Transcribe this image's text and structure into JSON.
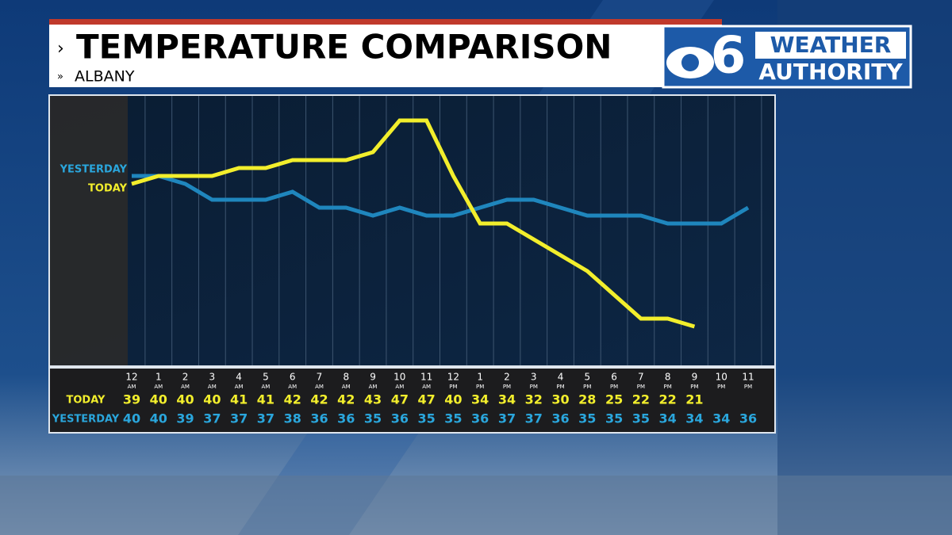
{
  "chart_data": {
    "type": "line",
    "title": "TEMPERATURE COMPARISON",
    "subtitle": "ALBANY",
    "logo": {
      "channel": "6",
      "line1": "WEATHER",
      "line2": "AUTHORITY"
    },
    "categories": [
      "12",
      "1",
      "2",
      "3",
      "4",
      "5",
      "6",
      "7",
      "8",
      "9",
      "10",
      "11",
      "12",
      "1",
      "2",
      "3",
      "4",
      "5",
      "6",
      "7",
      "8",
      "9",
      "10",
      "11"
    ],
    "periods": [
      "AM",
      "AM",
      "AM",
      "AM",
      "AM",
      "AM",
      "AM",
      "AM",
      "AM",
      "AM",
      "AM",
      "AM",
      "PM",
      "PM",
      "PM",
      "PM",
      "PM",
      "PM",
      "PM",
      "PM",
      "PM",
      "PM",
      "PM",
      "PM"
    ],
    "series": [
      {
        "name": "TODAY",
        "color": "#f2ee2c",
        "values": [
          39,
          40,
          40,
          40,
          41,
          41,
          42,
          42,
          42,
          43,
          47,
          47,
          40,
          34,
          34,
          32,
          30,
          28,
          25,
          22,
          22,
          21,
          null,
          null
        ]
      },
      {
        "name": "YESTERDAY",
        "color": "#1f86bd",
        "values": [
          40,
          40,
          39,
          37,
          37,
          37,
          38,
          36,
          36,
          35,
          36,
          35,
          35,
          36,
          37,
          37,
          36,
          35,
          35,
          35,
          34,
          34,
          34,
          36
        ]
      }
    ]
  }
}
